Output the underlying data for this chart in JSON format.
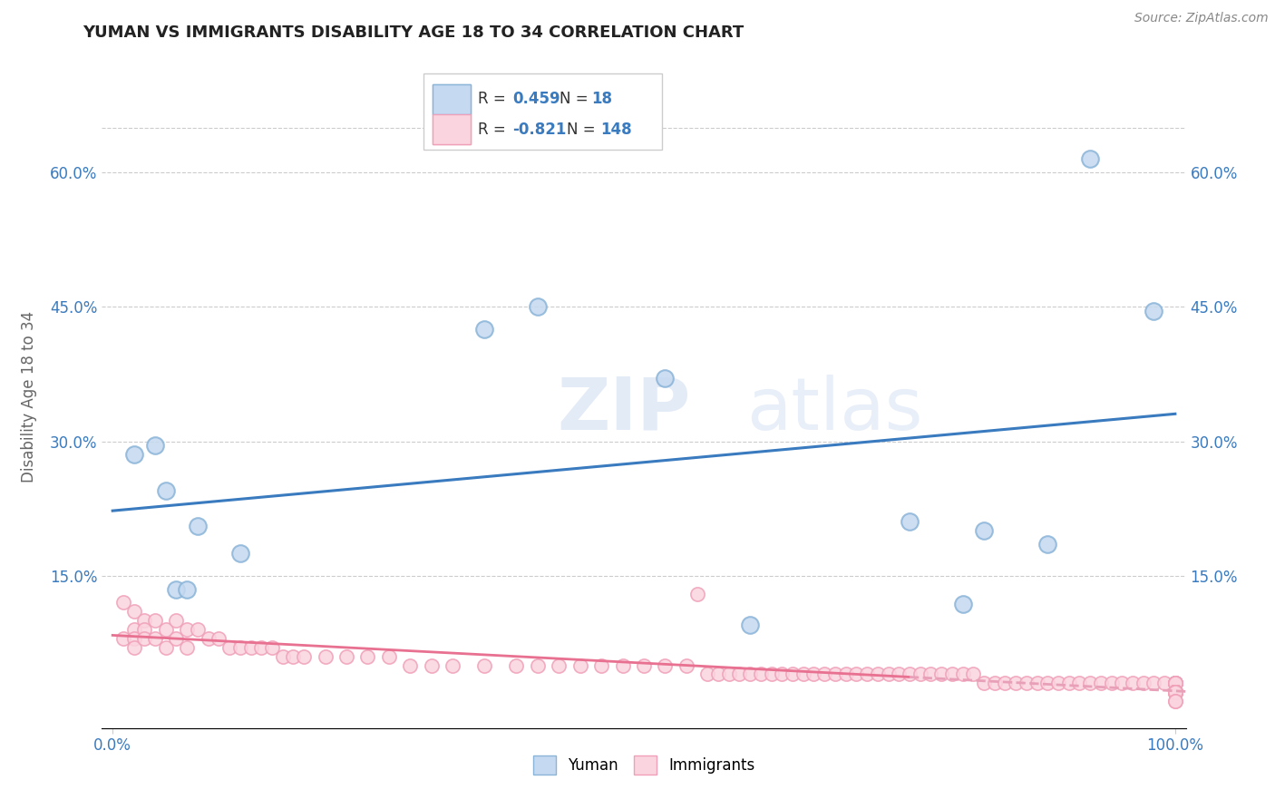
{
  "title": "YUMAN VS IMMIGRANTS DISABILITY AGE 18 TO 34 CORRELATION CHART",
  "source_text": "Source: ZipAtlas.com",
  "ylabel": "Disability Age 18 to 34",
  "watermark_zip": "ZIP",
  "watermark_atlas": "atlas",
  "xlim": [
    -0.01,
    1.01
  ],
  "ylim": [
    -0.02,
    0.72
  ],
  "x_ticks": [
    0.0,
    1.0
  ],
  "x_tick_labels": [
    "0.0%",
    "100.0%"
  ],
  "y_ticks": [
    0.15,
    0.3,
    0.45,
    0.6
  ],
  "y_tick_labels": [
    "15.0%",
    "30.0%",
    "45.0%",
    "60.0%"
  ],
  "blue_line_color": "#3a7bbf",
  "pink_line_color": "#e87090",
  "pink_line_dashed_color": "#e8a0b8",
  "blue_scatter_facecolor": "#c5d9f0",
  "blue_scatter_edgecolor": "#8ab4d8",
  "pink_scatter_facecolor": "#fad4de",
  "pink_scatter_edgecolor": "#f0a0b8",
  "background_color": "#ffffff",
  "grid_color": "#cccccc",
  "yuman_x": [
    0.02,
    0.04,
    0.05,
    0.06,
    0.07,
    0.08,
    0.12,
    0.35,
    0.4,
    0.52,
    0.6,
    0.75,
    0.8,
    0.82,
    0.88,
    0.92,
    0.98
  ],
  "yuman_y": [
    0.285,
    0.295,
    0.245,
    0.135,
    0.135,
    0.205,
    0.175,
    0.425,
    0.45,
    0.37,
    0.095,
    0.21,
    0.118,
    0.2,
    0.185,
    0.615,
    0.445
  ],
  "immigrants_x": [
    0.01,
    0.01,
    0.02,
    0.02,
    0.02,
    0.02,
    0.03,
    0.03,
    0.03,
    0.04,
    0.04,
    0.05,
    0.05,
    0.06,
    0.06,
    0.07,
    0.07,
    0.08,
    0.09,
    0.1,
    0.11,
    0.12,
    0.13,
    0.14,
    0.15,
    0.16,
    0.17,
    0.18,
    0.2,
    0.22,
    0.24,
    0.26,
    0.28,
    0.3,
    0.32,
    0.35,
    0.38,
    0.4,
    0.42,
    0.44,
    0.46,
    0.48,
    0.5,
    0.52,
    0.54,
    0.55,
    0.56,
    0.57,
    0.58,
    0.59,
    0.6,
    0.61,
    0.62,
    0.63,
    0.64,
    0.65,
    0.66,
    0.67,
    0.68,
    0.69,
    0.7,
    0.71,
    0.72,
    0.73,
    0.74,
    0.75,
    0.76,
    0.77,
    0.78,
    0.79,
    0.8,
    0.81,
    0.82,
    0.83,
    0.84,
    0.85,
    0.86,
    0.87,
    0.88,
    0.89,
    0.9,
    0.91,
    0.92,
    0.93,
    0.94,
    0.95,
    0.96,
    0.97,
    0.98,
    0.99,
    1.0,
    1.0,
    1.0,
    1.0,
    1.0,
    1.0,
    1.0,
    1.0,
    1.0,
    1.0,
    1.0,
    1.0,
    1.0,
    1.0,
    1.0,
    1.0,
    1.0,
    1.0,
    1.0,
    1.0,
    1.0,
    1.0,
    1.0,
    1.0,
    1.0,
    1.0,
    1.0,
    1.0,
    1.0,
    1.0,
    1.0,
    1.0,
    1.0,
    1.0,
    1.0,
    1.0,
    1.0,
    1.0,
    1.0,
    1.0,
    1.0,
    1.0,
    1.0,
    1.0,
    1.0,
    1.0,
    1.0,
    1.0,
    1.0,
    1.0,
    1.0,
    1.0,
    1.0,
    1.0,
    1.0
  ],
  "immigrants_y": [
    0.12,
    0.08,
    0.11,
    0.09,
    0.08,
    0.07,
    0.1,
    0.09,
    0.08,
    0.1,
    0.08,
    0.09,
    0.07,
    0.1,
    0.08,
    0.09,
    0.07,
    0.09,
    0.08,
    0.08,
    0.07,
    0.07,
    0.07,
    0.07,
    0.07,
    0.06,
    0.06,
    0.06,
    0.06,
    0.06,
    0.06,
    0.06,
    0.05,
    0.05,
    0.05,
    0.05,
    0.05,
    0.05,
    0.05,
    0.05,
    0.05,
    0.05,
    0.05,
    0.05,
    0.05,
    0.13,
    0.04,
    0.04,
    0.04,
    0.04,
    0.04,
    0.04,
    0.04,
    0.04,
    0.04,
    0.04,
    0.04,
    0.04,
    0.04,
    0.04,
    0.04,
    0.04,
    0.04,
    0.04,
    0.04,
    0.04,
    0.04,
    0.04,
    0.04,
    0.04,
    0.04,
    0.04,
    0.03,
    0.03,
    0.03,
    0.03,
    0.03,
    0.03,
    0.03,
    0.03,
    0.03,
    0.03,
    0.03,
    0.03,
    0.03,
    0.03,
    0.03,
    0.03,
    0.03,
    0.03,
    0.03,
    0.03,
    0.03,
    0.03,
    0.03,
    0.03,
    0.03,
    0.02,
    0.02,
    0.02,
    0.02,
    0.02,
    0.02,
    0.02,
    0.02,
    0.02,
    0.02,
    0.02,
    0.02,
    0.02,
    0.02,
    0.02,
    0.02,
    0.02,
    0.02,
    0.02,
    0.02,
    0.02,
    0.02,
    0.02,
    0.02,
    0.02,
    0.02,
    0.02,
    0.02,
    0.02,
    0.02,
    0.02,
    0.02,
    0.02,
    0.02,
    0.02,
    0.02,
    0.02,
    0.02,
    0.02,
    0.02,
    0.02,
    0.02,
    0.02,
    0.02,
    0.02,
    0.02,
    0.01,
    0.01
  ]
}
